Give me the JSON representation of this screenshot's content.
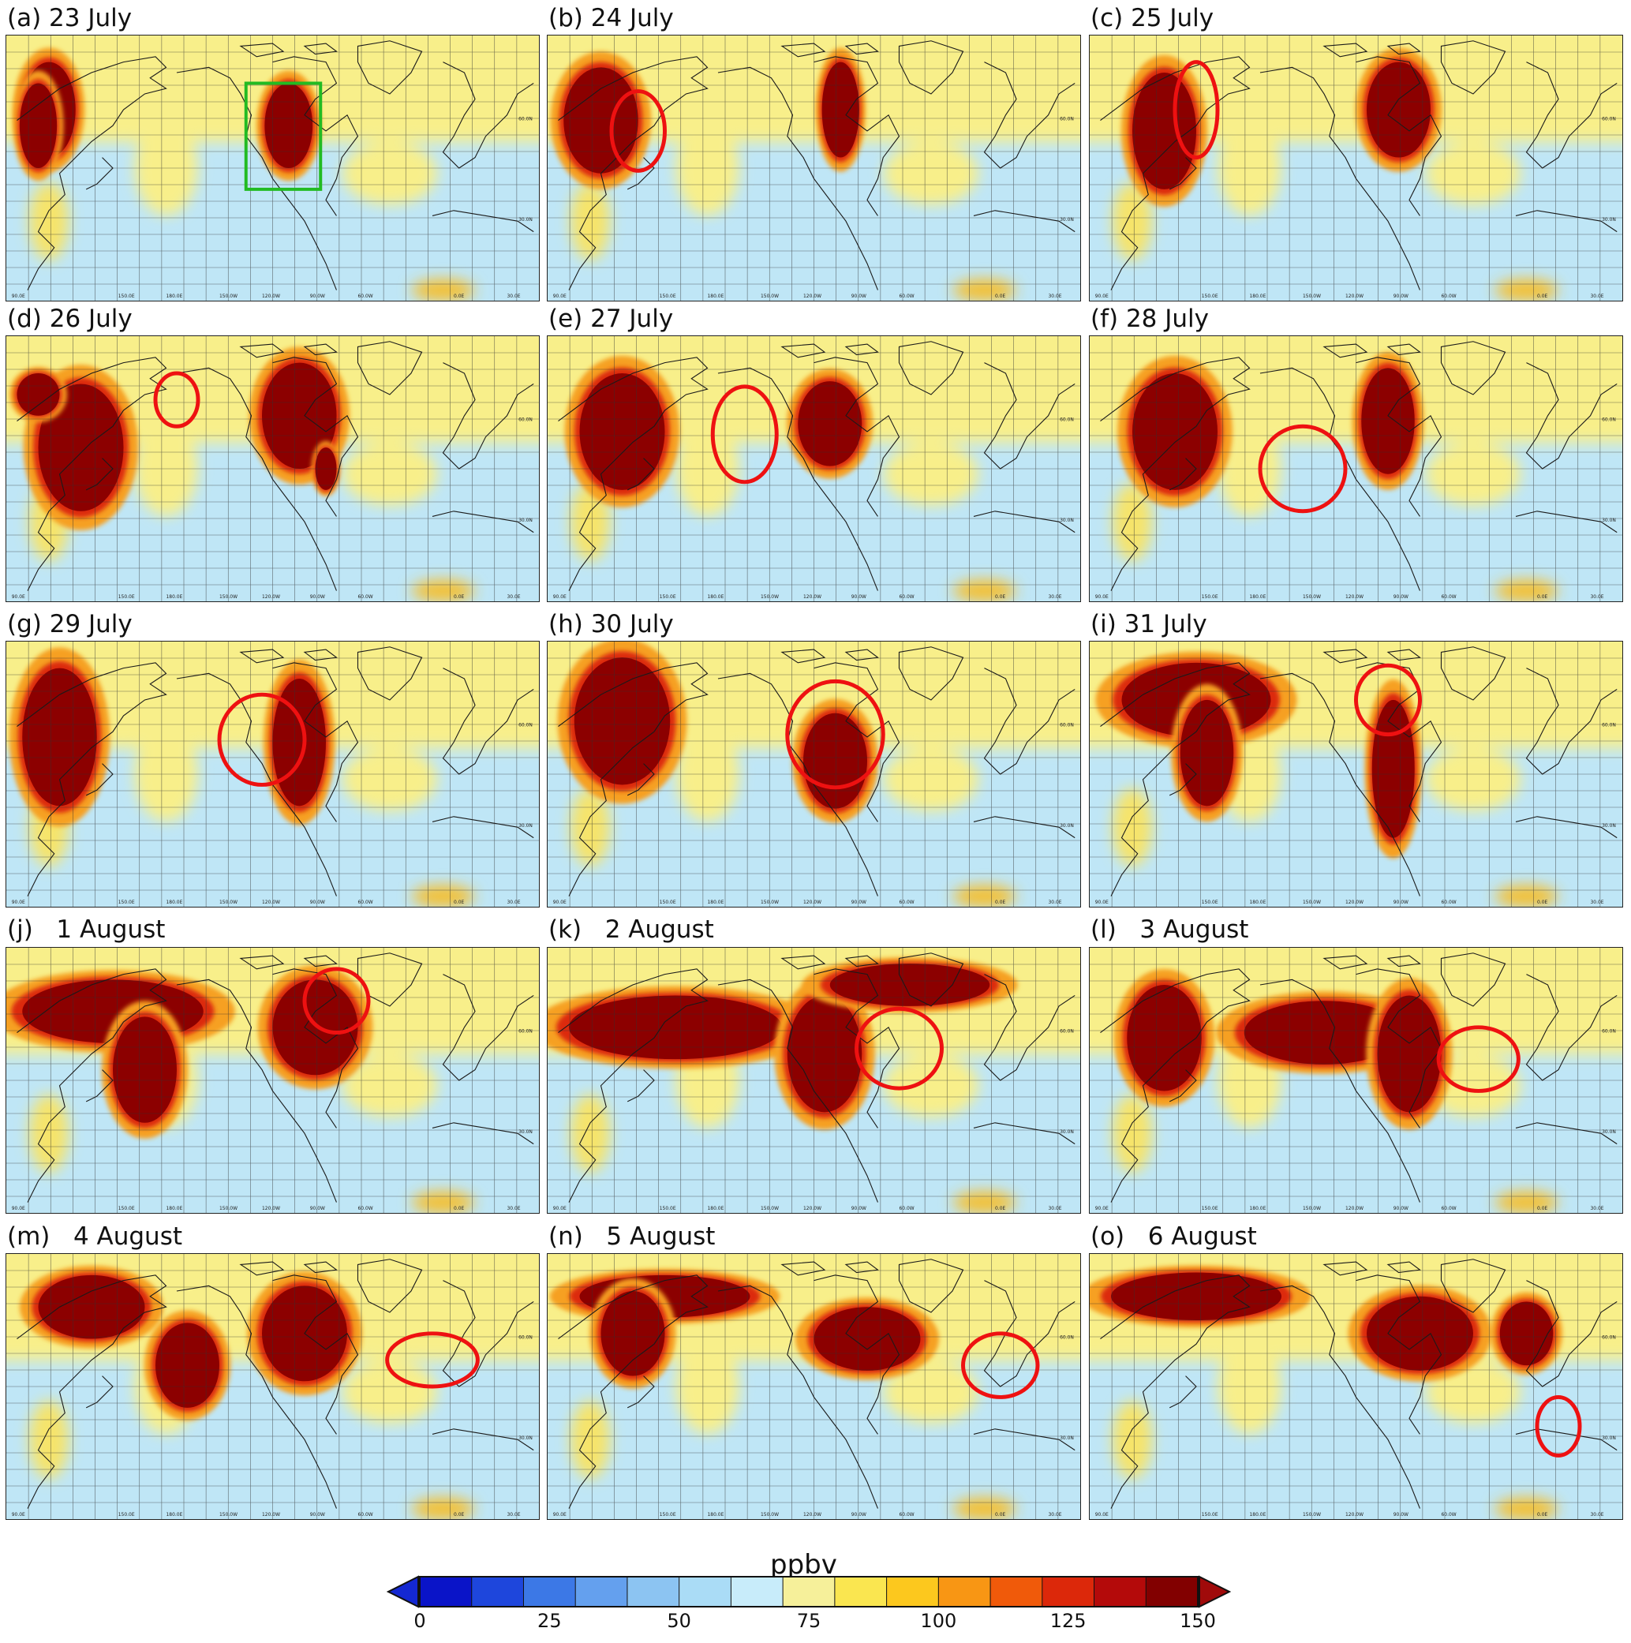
{
  "panels": [
    {
      "label": "(a) 23 July",
      "plumes": [
        [
          0.08,
          0.28,
          0.05,
          0.18
        ],
        [
          0.06,
          0.34,
          0.035,
          0.16
        ],
        [
          0.53,
          0.34,
          0.045,
          0.16
        ]
      ],
      "marker": {
        "type": "rect",
        "cx": 0.52,
        "cy": 0.38,
        "rx": 0.07,
        "ry": 0.2,
        "color": "#22bb22"
      }
    },
    {
      "label": "(b) 24 July",
      "plumes": [
        [
          0.1,
          0.32,
          0.07,
          0.2
        ],
        [
          0.55,
          0.28,
          0.035,
          0.18
        ]
      ],
      "marker": {
        "type": "ellipse",
        "cx": 0.17,
        "cy": 0.36,
        "rx": 0.05,
        "ry": 0.15,
        "color": "#ee1111"
      }
    },
    {
      "label": "(c) 25 July",
      "plumes": [
        [
          0.14,
          0.36,
          0.06,
          0.22
        ],
        [
          0.58,
          0.28,
          0.06,
          0.18
        ]
      ],
      "marker": {
        "type": "ellipse",
        "cx": 0.2,
        "cy": 0.28,
        "rx": 0.04,
        "ry": 0.18,
        "color": "#ee1111"
      }
    },
    {
      "label": "(d) 26 July",
      "plumes": [
        [
          0.14,
          0.42,
          0.08,
          0.24
        ],
        [
          0.06,
          0.22,
          0.04,
          0.08
        ],
        [
          0.55,
          0.3,
          0.07,
          0.2
        ],
        [
          0.6,
          0.5,
          0.02,
          0.08
        ]
      ],
      "marker": {
        "type": "ellipse",
        "cx": 0.32,
        "cy": 0.24,
        "rx": 0.04,
        "ry": 0.1,
        "color": "#ee1111"
      }
    },
    {
      "label": "(e) 27 July",
      "plumes": [
        [
          0.14,
          0.36,
          0.08,
          0.22
        ],
        [
          0.53,
          0.33,
          0.06,
          0.16
        ]
      ],
      "marker": {
        "type": "ellipse",
        "cx": 0.37,
        "cy": 0.37,
        "rx": 0.06,
        "ry": 0.18,
        "color": "#ee1111"
      }
    },
    {
      "label": "(f) 28 July",
      "plumes": [
        [
          0.16,
          0.36,
          0.08,
          0.22
        ],
        [
          0.56,
          0.32,
          0.05,
          0.2
        ]
      ],
      "marker": {
        "type": "ellipse",
        "cx": 0.4,
        "cy": 0.5,
        "rx": 0.08,
        "ry": 0.16,
        "color": "#ee1111"
      }
    },
    {
      "label": "(g) 29 July",
      "plumes": [
        [
          0.1,
          0.36,
          0.07,
          0.26
        ],
        [
          0.55,
          0.38,
          0.05,
          0.24
        ]
      ],
      "marker": {
        "type": "ellipse",
        "cx": 0.48,
        "cy": 0.37,
        "rx": 0.08,
        "ry": 0.17,
        "color": "#ee1111"
      }
    },
    {
      "label": "(h) 30 July",
      "plumes": [
        [
          0.14,
          0.3,
          0.09,
          0.24
        ],
        [
          0.54,
          0.45,
          0.06,
          0.18
        ]
      ],
      "marker": {
        "type": "ellipse",
        "cx": 0.54,
        "cy": 0.35,
        "rx": 0.09,
        "ry": 0.2,
        "color": "#ee1111"
      }
    },
    {
      "label": "(i) 31 July",
      "plumes": [
        [
          0.2,
          0.22,
          0.14,
          0.14
        ],
        [
          0.22,
          0.42,
          0.05,
          0.2
        ],
        [
          0.57,
          0.48,
          0.04,
          0.26
        ]
      ],
      "marker": {
        "type": "ellipse",
        "cx": 0.56,
        "cy": 0.22,
        "rx": 0.06,
        "ry": 0.13,
        "color": "#ee1111"
      }
    },
    {
      "label": "(j)   1 August",
      "plumes": [
        [
          0.2,
          0.24,
          0.17,
          0.12
        ],
        [
          0.26,
          0.46,
          0.06,
          0.2
        ],
        [
          0.58,
          0.3,
          0.08,
          0.18
        ]
      ],
      "marker": {
        "type": "ellipse",
        "cx": 0.62,
        "cy": 0.2,
        "rx": 0.06,
        "ry": 0.12,
        "color": "#ee1111"
      }
    },
    {
      "label": "(k)   2 August",
      "plumes": [
        [
          0.24,
          0.3,
          0.2,
          0.12
        ],
        [
          0.52,
          0.4,
          0.07,
          0.22
        ],
        [
          0.68,
          0.14,
          0.15,
          0.08
        ]
      ],
      "marker": {
        "type": "ellipse",
        "cx": 0.66,
        "cy": 0.38,
        "rx": 0.08,
        "ry": 0.15,
        "color": "#ee1111"
      }
    },
    {
      "label": "(l)   3 August",
      "plumes": [
        [
          0.14,
          0.34,
          0.07,
          0.2
        ],
        [
          0.44,
          0.32,
          0.15,
          0.12
        ],
        [
          0.6,
          0.4,
          0.06,
          0.22
        ]
      ],
      "marker": {
        "type": "ellipse",
        "cx": 0.73,
        "cy": 0.42,
        "rx": 0.075,
        "ry": 0.12,
        "color": "#ee1111"
      }
    },
    {
      "label": "(m)   4 August",
      "plumes": [
        [
          0.16,
          0.2,
          0.1,
          0.12
        ],
        [
          0.34,
          0.42,
          0.06,
          0.16
        ],
        [
          0.56,
          0.3,
          0.08,
          0.18
        ]
      ],
      "marker": {
        "type": "ellipse",
        "cx": 0.8,
        "cy": 0.4,
        "rx": 0.085,
        "ry": 0.1,
        "color": "#ee1111"
      }
    },
    {
      "label": "(n)   5 August",
      "plumes": [
        [
          0.22,
          0.16,
          0.16,
          0.08
        ],
        [
          0.16,
          0.3,
          0.06,
          0.16
        ],
        [
          0.6,
          0.32,
          0.1,
          0.12
        ]
      ],
      "marker": {
        "type": "ellipse",
        "cx": 0.85,
        "cy": 0.42,
        "rx": 0.07,
        "ry": 0.12,
        "color": "#ee1111"
      }
    },
    {
      "label": "(o)   6 August",
      "plumes": [
        [
          0.2,
          0.16,
          0.16,
          0.09
        ],
        [
          0.62,
          0.3,
          0.1,
          0.14
        ],
        [
          0.82,
          0.3,
          0.05,
          0.12
        ]
      ],
      "marker": {
        "type": "ellipse",
        "cx": 0.88,
        "cy": 0.65,
        "rx": 0.04,
        "ry": 0.11,
        "color": "#ee1111"
      }
    }
  ],
  "axis_labels": [
    "90.0E",
    "150.0E",
    "180.0E",
    "150.0W",
    "120.0W",
    "90.0W",
    "60.0W",
    "0.0E",
    "30.0E"
  ],
  "lat_labels": [
    "60.0N",
    "30.0N"
  ],
  "colorbar": {
    "title": "ppbv",
    "min": 0,
    "max": 150,
    "ticks": [
      "0",
      "25",
      "50",
      "75",
      "100",
      "125",
      "150"
    ],
    "colors": [
      "#0a14c8",
      "#1e46dc",
      "#3c78e6",
      "#64a0ee",
      "#8cc4f2",
      "#aadcf6",
      "#c8ecfa",
      "#f6f09a",
      "#fae650",
      "#fcc81e",
      "#f89614",
      "#f05a0a",
      "#dc280a",
      "#b40a0a",
      "#820000"
    ],
    "under_color": "#1428d2",
    "over_color": "#a00a0a"
  }
}
